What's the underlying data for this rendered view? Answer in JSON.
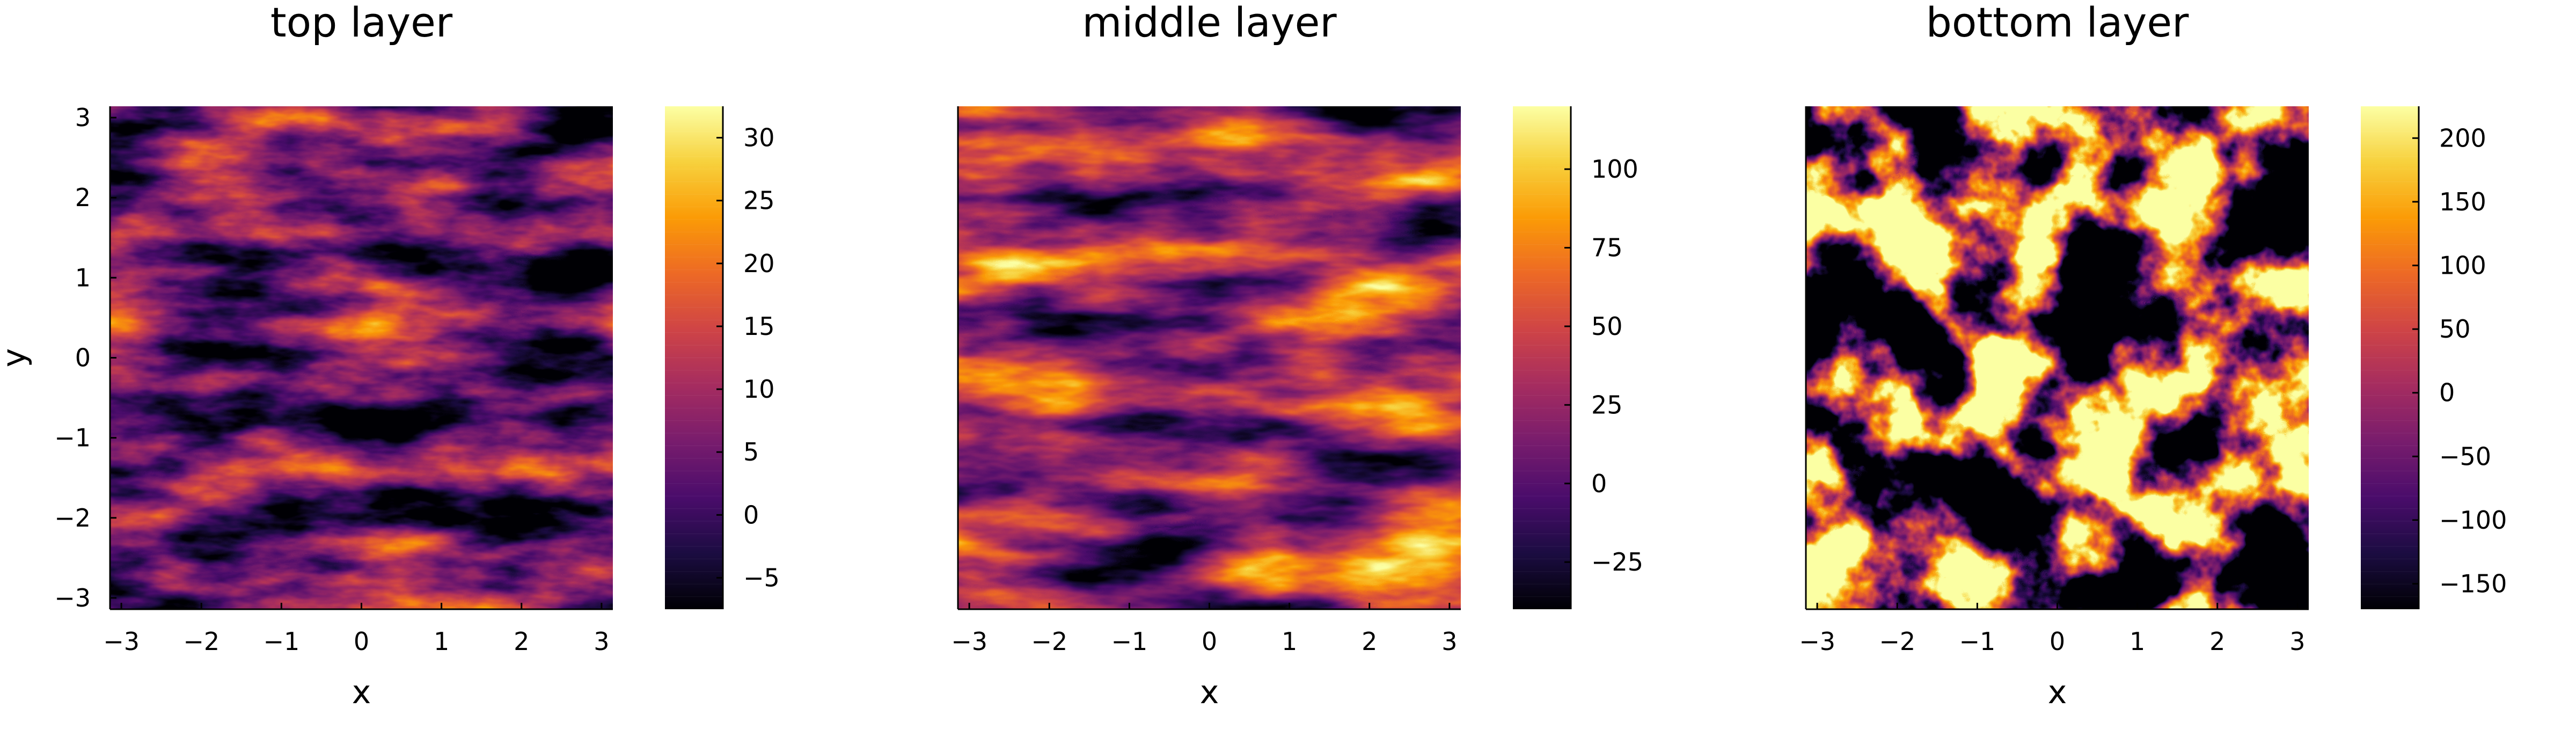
{
  "chart_data": [
    {
      "type": "heatmap",
      "title": "top layer",
      "xlabel": "x",
      "ylabel": "y",
      "xlim": [
        -3.14159,
        3.14159
      ],
      "ylim": [
        -3.14159,
        3.14159
      ],
      "xticks": [
        -3,
        -2,
        -1,
        0,
        1,
        2,
        3
      ],
      "yticks": [
        -3,
        -2,
        -1,
        0,
        1,
        2,
        3
      ],
      "colorbar": {
        "colormap": "inferno",
        "range": [
          -7.5,
          32.5
        ],
        "ticks": [
          -5,
          0,
          5,
          10,
          15,
          20,
          25,
          30
        ]
      },
      "grid": false,
      "legend": "none"
    },
    {
      "type": "heatmap",
      "title": "middle layer",
      "xlabel": "x",
      "ylabel": "",
      "xlim": [
        -3.14159,
        3.14159
      ],
      "ylim": [
        -3.14159,
        3.14159
      ],
      "xticks": [
        -3,
        -2,
        -1,
        0,
        1,
        2,
        3
      ],
      "yticks": [],
      "colorbar": {
        "colormap": "inferno",
        "range": [
          -40,
          120
        ],
        "ticks": [
          -25,
          0,
          25,
          50,
          75,
          100
        ]
      },
      "grid": false,
      "legend": "none"
    },
    {
      "type": "heatmap",
      "title": "bottom layer",
      "xlabel": "x",
      "ylabel": "",
      "xlim": [
        -3.14159,
        3.14159
      ],
      "ylim": [
        -3.14159,
        3.14159
      ],
      "xticks": [
        -3,
        -2,
        -1,
        0,
        1,
        2,
        3
      ],
      "yticks": [],
      "colorbar": {
        "colormap": "inferno",
        "range": [
          -170,
          225
        ],
        "ticks": [
          -150,
          -100,
          -50,
          0,
          50,
          100,
          150,
          200
        ]
      },
      "grid": false,
      "legend": "none"
    }
  ],
  "colors": {
    "inferno": [
      "#000004",
      "#1b0c41",
      "#4a0c6b",
      "#781c6d",
      "#a52c60",
      "#cf4446",
      "#ed6925",
      "#fb9b06",
      "#f7d13d",
      "#fcffa4"
    ]
  }
}
